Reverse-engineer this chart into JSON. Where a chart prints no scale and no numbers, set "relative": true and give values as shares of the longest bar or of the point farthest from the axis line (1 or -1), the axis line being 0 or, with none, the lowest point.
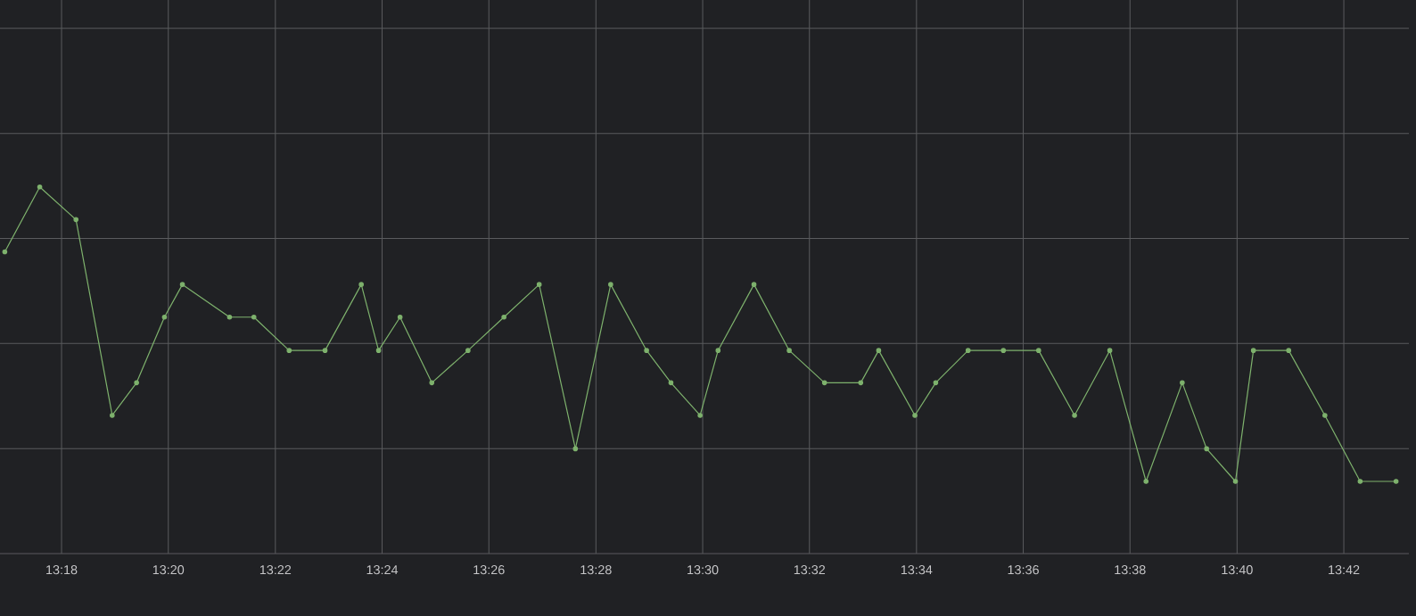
{
  "chart_data": {
    "type": "line",
    "relative": true,
    "color": "#7eb26d",
    "marker": "circle",
    "line_style": "solid",
    "grid": true,
    "x": [
      13.2823,
      13.2932,
      13.3045,
      13.3158,
      13.3234,
      13.3321,
      13.3377,
      13.3524,
      13.36,
      13.371,
      13.3822,
      13.3935,
      13.3989,
      13.4056,
      13.4155,
      13.4268,
      13.438,
      13.449,
      13.4603,
      13.4713,
      13.4825,
      13.4901,
      13.4992,
      13.5048,
      13.516,
      13.527,
      13.538,
      13.5493,
      13.5549,
      13.5662,
      13.5727,
      13.5828,
      13.5938,
      13.6048,
      13.616,
      13.627,
      13.6383,
      13.6496,
      13.6572,
      13.6662,
      13.6718,
      13.6828,
      13.6941,
      13.7051,
      13.7163
    ],
    "values": [
      0.823,
      1,
      0.911,
      0.377,
      0.466,
      0.645,
      0.734,
      0.645,
      0.645,
      0.554,
      0.554,
      0.734,
      0.554,
      0.645,
      0.466,
      0.554,
      0.645,
      0.734,
      0.286,
      0.734,
      0.554,
      0.466,
      0.377,
      0.554,
      0.734,
      0.554,
      0.466,
      0.466,
      0.554,
      0.377,
      0.466,
      0.554,
      0.554,
      0.554,
      0.377,
      0.554,
      0.197,
      0.466,
      0.286,
      0.197,
      0.554,
      0.554,
      0.377,
      0.197,
      0.197
    ],
    "xlim": [
      13.2808,
      13.7203
    ],
    "xticks": [
      {
        "value": 13.3,
        "label": "13:18"
      },
      {
        "value": 13.3333,
        "label": "13:20"
      },
      {
        "value": 13.3667,
        "label": "13:22"
      },
      {
        "value": 13.4,
        "label": "13:24"
      },
      {
        "value": 13.4333,
        "label": "13:26"
      },
      {
        "value": 13.4667,
        "label": "13:28"
      },
      {
        "value": 13.5,
        "label": "13:30"
      },
      {
        "value": 13.5333,
        "label": "13:32"
      },
      {
        "value": 13.5667,
        "label": "13:34"
      },
      {
        "value": 13.6,
        "label": "13:36"
      },
      {
        "value": 13.6333,
        "label": "13:38"
      },
      {
        "value": 13.6667,
        "label": "13:40"
      },
      {
        "value": 13.7,
        "label": "13:42"
      }
    ]
  }
}
